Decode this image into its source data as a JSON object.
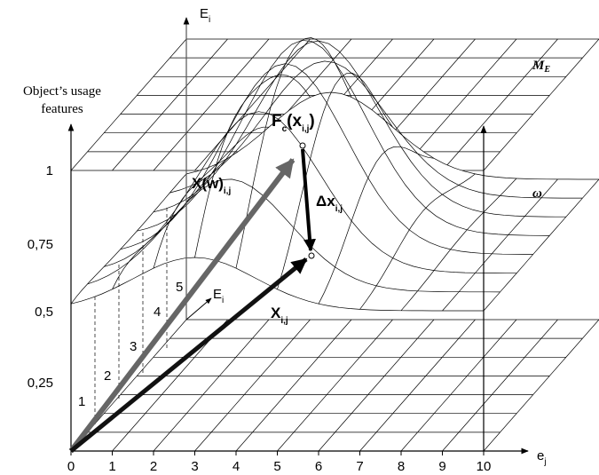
{
  "axes": {
    "y_label": [
      "Object’s usage",
      "features"
    ],
    "y_ticks": [
      "1",
      "0,75",
      "0,5",
      "0,25"
    ],
    "x_ticks": [
      "0",
      "1",
      "2",
      "3",
      "4",
      "5",
      "6",
      "7",
      "8",
      "9",
      "10"
    ],
    "x_label": {
      "text": "e",
      "sub": "j"
    },
    "e_top": {
      "text": "E",
      "sub": "i"
    },
    "e_mid": {
      "text": "E",
      "sub": "i"
    },
    "depth_ticks": [
      "1",
      "2",
      "3",
      "4",
      "5"
    ]
  },
  "labels": {
    "manifold": {
      "text": "M",
      "sub": "E"
    },
    "fc": {
      "text": "F",
      "sub": "c",
      "arg": "(x",
      "argsub": "i,j",
      "close": ")"
    },
    "xw": {
      "text": "X(w)",
      "sub": "i,j"
    },
    "dx": {
      "text": "Δx",
      "sub": "i,j"
    },
    "omega": "ω",
    "x": {
      "text": "X",
      "sub": "i,j"
    }
  }
}
